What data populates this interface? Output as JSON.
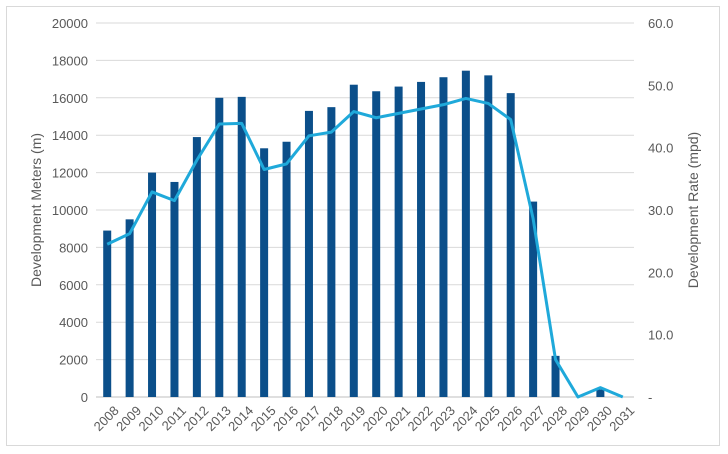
{
  "chart_data": {
    "type": "bar",
    "title": "",
    "categories": [
      "2008",
      "2009",
      "2010",
      "2011",
      "2012",
      "2013",
      "2014",
      "2015",
      "2016",
      "2017",
      "2018",
      "2019",
      "2020",
      "2021",
      "2022",
      "2023",
      "2024",
      "2025",
      "2026",
      "2027",
      "2028",
      "2029",
      "2030",
      "2031"
    ],
    "series": [
      {
        "type": "bar",
        "axis": "left",
        "color": "#0b4f8a",
        "values": [
          8900,
          9500,
          12000,
          11500,
          13900,
          16000,
          16050,
          13300,
          13650,
          15300,
          15500,
          16700,
          16350,
          16600,
          16850,
          17100,
          17450,
          17200,
          16250,
          10450,
          2200,
          0,
          400,
          0
        ]
      },
      {
        "type": "line",
        "axis": "right",
        "color": "#1fa9da",
        "values": [
          24.5,
          26.2,
          32.9,
          31.5,
          38.0,
          43.8,
          43.9,
          36.5,
          37.4,
          41.9,
          42.5,
          45.8,
          44.8,
          45.5,
          46.2,
          46.9,
          47.9,
          47.1,
          44.5,
          28.6,
          6.0,
          0,
          1.5,
          0
        ]
      }
    ],
    "y_left": {
      "label": "Development Meters (m)",
      "ylim": [
        0,
        20000
      ],
      "ticks": [
        "0",
        "2000",
        "4000",
        "6000",
        "8000",
        "10000",
        "12000",
        "14000",
        "16000",
        "18000",
        "20000"
      ]
    },
    "y_right": {
      "label": "Development Rate (mpd)",
      "ylim": [
        0,
        60
      ],
      "ticks": [
        "-",
        "10.0",
        "20.0",
        "30.0",
        "40.0",
        "50.0",
        "60.0"
      ]
    },
    "grid": true,
    "legend": "none"
  }
}
